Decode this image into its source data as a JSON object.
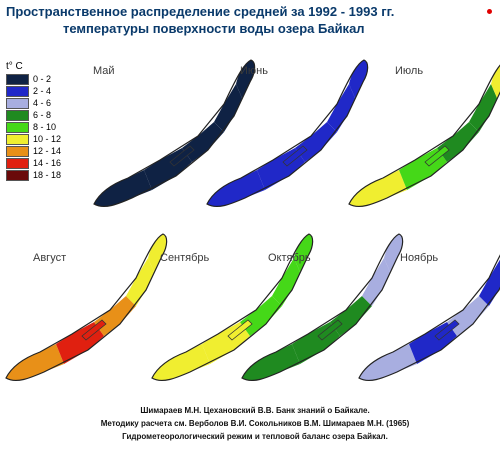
{
  "title": {
    "line1": "Пространственное распределение средней  за 1992 - 1993 гг.",
    "line2": "температуры поверхности воды озера Байкал"
  },
  "legend": {
    "unit": "t° C",
    "items": [
      {
        "label": "0 - 2",
        "color": "#0f2244"
      },
      {
        "label": "2 - 4",
        "color": "#2028c8"
      },
      {
        "label": "4 - 6",
        "color": "#a8aee0"
      },
      {
        "label": "6 - 8",
        "color": "#1f8a20"
      },
      {
        "label": "8 - 10",
        "color": "#45d818"
      },
      {
        "label": "10 - 12",
        "color": "#f0ee30"
      },
      {
        "label": "12 - 14",
        "color": "#e89018"
      },
      {
        "label": "14 - 16",
        "color": "#e02010"
      },
      {
        "label": "18 - 18",
        "color": "#6a0a0a"
      }
    ]
  },
  "maps": [
    {
      "month": "Май",
      "zones": [
        "#0f2244",
        "#0f2244",
        "#0f2244",
        "#0f2244"
      ],
      "north": "#0f2244"
    },
    {
      "month": "Июнь",
      "zones": [
        "#2028c8",
        "#2028c8",
        "#2028c8",
        "#2028c8"
      ],
      "north": "#2028c8"
    },
    {
      "month": "Июль",
      "zones": [
        "#f0ee30",
        "#45d818",
        "#1f8a20",
        "#1f8a20"
      ],
      "north": "#f0ee30"
    },
    {
      "month": "Август",
      "zones": [
        "#e89018",
        "#e02010",
        "#e89018",
        "#f0ee30"
      ],
      "north": "#f0ee30"
    },
    {
      "month": "Сентябрь",
      "zones": [
        "#f0ee30",
        "#f0ee30",
        "#45d818",
        "#45d818"
      ],
      "north": "#45d818"
    },
    {
      "month": "Октябрь",
      "zones": [
        "#1f8a20",
        "#1f8a20",
        "#1f8a20",
        "#a8aee0"
      ],
      "north": "#a8aee0"
    },
    {
      "month": "Ноябрь",
      "zones": [
        "#a8aee0",
        "#2028c8",
        "#a8aee0",
        "#2028c8"
      ],
      "north": "#0f2244"
    }
  ],
  "credits": [
    "Шимараев М.Н. Цехановский  В.В.  Банк знаний о Байкале.",
    "Методику расчета см. Верболов В.И. Сокольников В.М. Шимараев М.Н. (1965)",
    "Гидрометеорологический режим и тепловой баланс озера Байкал."
  ]
}
